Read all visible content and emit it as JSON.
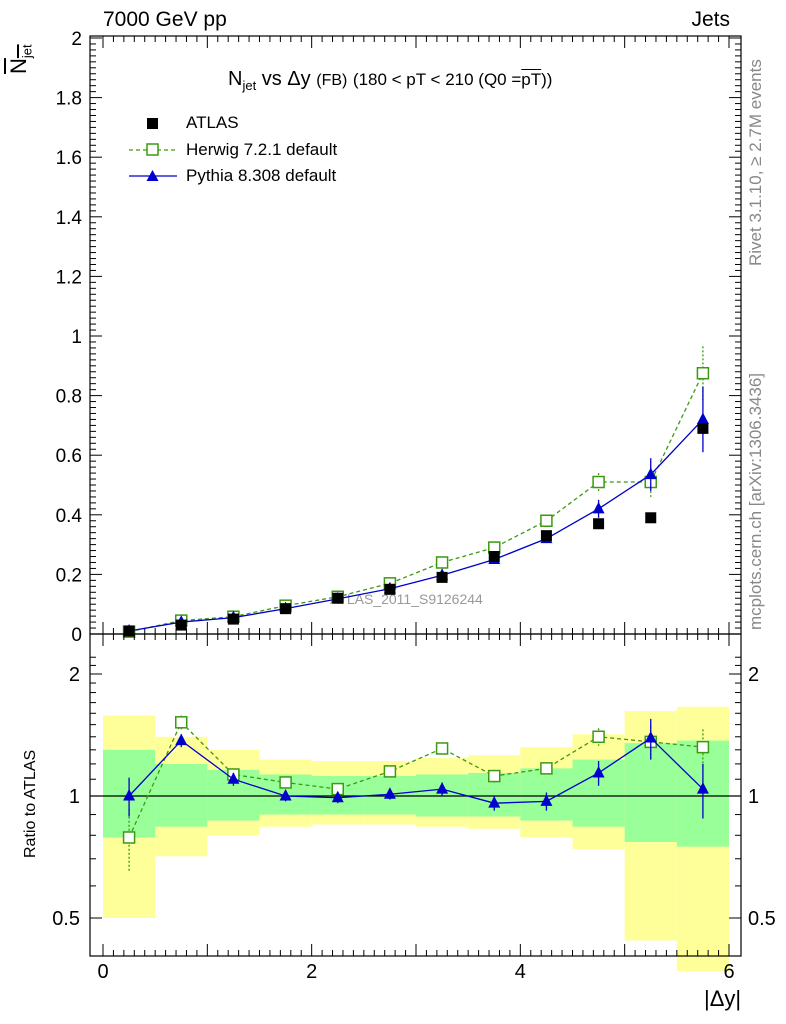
{
  "header": {
    "left": "7000 GeV pp",
    "right": "Jets"
  },
  "side_labels": {
    "top": "Rivet 3.1.10, ≥ 2.7M events",
    "bottom": "mcplots.cern.ch [arXiv:1306.3436]"
  },
  "chart_data": [
    {
      "type": "scatter",
      "title": "N_jet vs Δy (FB) (180 < pT < 210 (Q0 = mean pT))",
      "title_parts": {
        "main": "N",
        "main_sub": "jet",
        "mid": "vs Δy",
        "small": "(FB)",
        "rest": "(180 < pT < 210 (Q0 =",
        "bar": "pT",
        "close": "))"
      },
      "ylabel": "N_jet (mean)",
      "ylabel_parts": {
        "main": "N",
        "sub": "jet"
      },
      "xlabel": "|Δy|",
      "xlim": [
        0,
        6
      ],
      "ylim": [
        0,
        2
      ],
      "yticks": [
        "0",
        "0.2",
        "0.4",
        "0.6",
        "0.8",
        "1",
        "1.2",
        "1.4",
        "1.6",
        "1.8",
        "2"
      ],
      "xticks": [
        "0",
        "2",
        "4",
        "6"
      ],
      "watermark": "ATLAS_2011_S9126244",
      "x": [
        0.25,
        0.75,
        1.25,
        1.75,
        2.25,
        2.75,
        3.25,
        3.75,
        4.25,
        4.75,
        5.25,
        5.75
      ],
      "series": [
        {
          "name": "ATLAS",
          "marker": "filled-square",
          "color": "#000000",
          "values": [
            0.01,
            0.03,
            0.05,
            0.085,
            0.12,
            0.15,
            0.19,
            0.26,
            0.33,
            0.37,
            0.39,
            0.69
          ]
        },
        {
          "name": "Herwig 7.2.1 default",
          "marker": "open-square",
          "color": "#3a9a10",
          "line": "dashed",
          "values": [
            0.008,
            0.045,
            0.058,
            0.095,
            0.125,
            0.17,
            0.24,
            0.29,
            0.38,
            0.51,
            0.51,
            0.875
          ],
          "errors": [
            0.003,
            0.005,
            0.005,
            0.007,
            0.008,
            0.009,
            0.011,
            0.013,
            0.016,
            0.03,
            0.05,
            0.09
          ]
        },
        {
          "name": "Pythia 8.308 default",
          "marker": "filled-triangle",
          "color": "#0000cc",
          "line": "solid",
          "values": [
            0.01,
            0.04,
            0.055,
            0.085,
            0.118,
            0.152,
            0.197,
            0.25,
            0.32,
            0.42,
            0.535,
            0.72
          ],
          "errors": [
            0.002,
            0.004,
            0.004,
            0.006,
            0.007,
            0.008,
            0.009,
            0.012,
            0.015,
            0.03,
            0.055,
            0.11
          ]
        }
      ]
    },
    {
      "type": "scatter",
      "ylabel": "Ratio to ATLAS",
      "xlabel": "|Δy|",
      "xlim": [
        0,
        6
      ],
      "ylim": [
        0.4,
        2.3
      ],
      "yscale": "log",
      "yticks": [
        "0.5",
        "1",
        "2"
      ],
      "xticks": [
        "0",
        "2",
        "4",
        "6"
      ],
      "reference": 1,
      "x": [
        0.25,
        0.75,
        1.25,
        1.75,
        2.25,
        2.75,
        3.25,
        3.75,
        4.25,
        4.75,
        5.25,
        5.75
      ],
      "bins": [
        [
          0,
          0.5
        ],
        [
          0.5,
          1
        ],
        [
          1,
          1.5
        ],
        [
          1.5,
          2
        ],
        [
          2,
          2.5
        ],
        [
          2.5,
          3
        ],
        [
          3,
          3.5
        ],
        [
          3.5,
          4
        ],
        [
          4,
          4.5
        ],
        [
          4.5,
          5
        ],
        [
          5,
          5.5
        ],
        [
          5.5,
          6
        ]
      ],
      "band_yellow": [
        [
          0.5,
          1.58
        ],
        [
          0.71,
          1.4
        ],
        [
          0.8,
          1.3
        ],
        [
          0.84,
          1.23
        ],
        [
          0.85,
          1.22
        ],
        [
          0.85,
          1.22
        ],
        [
          0.84,
          1.24
        ],
        [
          0.83,
          1.26
        ],
        [
          0.79,
          1.32
        ],
        [
          0.74,
          1.42
        ],
        [
          0.44,
          1.62
        ],
        [
          0.37,
          1.66
        ]
      ],
      "band_green": [
        [
          0.79,
          1.3
        ],
        [
          0.84,
          1.2
        ],
        [
          0.87,
          1.16
        ],
        [
          0.9,
          1.13
        ],
        [
          0.9,
          1.12
        ],
        [
          0.9,
          1.12
        ],
        [
          0.89,
          1.13
        ],
        [
          0.89,
          1.14
        ],
        [
          0.87,
          1.17
        ],
        [
          0.84,
          1.23
        ],
        [
          0.77,
          1.35
        ],
        [
          0.75,
          1.37
        ]
      ],
      "series": [
        {
          "name": "Herwig 7.2.1 default",
          "color": "#3a9a10",
          "values": [
            0.79,
            1.52,
            1.13,
            1.08,
            1.04,
            1.15,
            1.31,
            1.12,
            1.17,
            1.4,
            1.36,
            1.32
          ],
          "errors": [
            0.14,
            0.06,
            0.03,
            0.03,
            0.03,
            0.03,
            0.04,
            0.04,
            0.04,
            0.07,
            0.13,
            0.14
          ]
        },
        {
          "name": "Pythia 8.308 default",
          "color": "#0000cc",
          "values": [
            1.0,
            1.37,
            1.1,
            1.0,
            0.99,
            1.01,
            1.04,
            0.96,
            0.97,
            1.14,
            1.39,
            1.04
          ],
          "errors": [
            0.11,
            0.05,
            0.04,
            0.03,
            0.03,
            0.03,
            0.04,
            0.04,
            0.05,
            0.08,
            0.16,
            0.16
          ]
        }
      ]
    }
  ]
}
